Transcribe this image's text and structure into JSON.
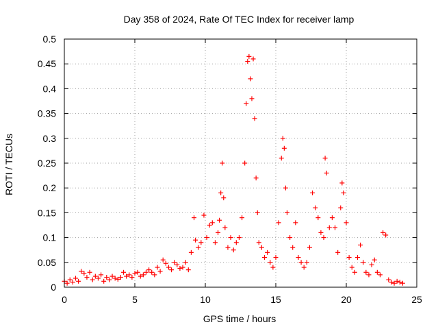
{
  "chart_data": {
    "type": "scatter",
    "title": "Day 358 of 2024, Rate Of TEC Index for receiver lamp",
    "xlabel": "GPS time / hours",
    "ylabel": "ROTI / TECUs",
    "xlim": [
      0,
      25
    ],
    "ylim": [
      0,
      0.5
    ],
    "x_ticks": [
      0,
      5,
      10,
      15,
      20,
      25
    ],
    "x_tick_labels": [
      "0",
      "5",
      "10",
      "15",
      "20",
      "25"
    ],
    "y_ticks": [
      0,
      0.05,
      0.1,
      0.15,
      0.2,
      0.25,
      0.3,
      0.35,
      0.4,
      0.45,
      0.5
    ],
    "y_tick_labels": [
      "0",
      "0.05",
      "0.1",
      "0.15",
      "0.2",
      "0.25",
      "0.3",
      "0.35",
      "0.4",
      "0.45",
      "0.5"
    ],
    "grid": true,
    "marker": "+",
    "color": "#ff0000",
    "series": [
      {
        "points": [
          [
            0.0,
            0.012
          ],
          [
            0.2,
            0.008
          ],
          [
            0.4,
            0.015
          ],
          [
            0.6,
            0.01
          ],
          [
            0.8,
            0.018
          ],
          [
            1.0,
            0.012
          ],
          [
            1.2,
            0.032
          ],
          [
            1.4,
            0.028
          ],
          [
            1.6,
            0.02
          ],
          [
            1.8,
            0.03
          ],
          [
            2.0,
            0.015
          ],
          [
            2.2,
            0.022
          ],
          [
            2.4,
            0.018
          ],
          [
            2.6,
            0.025
          ],
          [
            2.8,
            0.012
          ],
          [
            3.0,
            0.02
          ],
          [
            3.2,
            0.015
          ],
          [
            3.4,
            0.022
          ],
          [
            3.6,
            0.018
          ],
          [
            3.8,
            0.016
          ],
          [
            4.0,
            0.02
          ],
          [
            4.2,
            0.03
          ],
          [
            4.4,
            0.022
          ],
          [
            4.6,
            0.025
          ],
          [
            4.8,
            0.02
          ],
          [
            5.0,
            0.028
          ],
          [
            5.2,
            0.03
          ],
          [
            5.4,
            0.022
          ],
          [
            5.6,
            0.025
          ],
          [
            5.8,
            0.03
          ],
          [
            6.0,
            0.035
          ],
          [
            6.2,
            0.03
          ],
          [
            6.4,
            0.025
          ],
          [
            6.6,
            0.04
          ],
          [
            6.8,
            0.032
          ],
          [
            7.0,
            0.055
          ],
          [
            7.2,
            0.048
          ],
          [
            7.4,
            0.04
          ],
          [
            7.6,
            0.035
          ],
          [
            7.8,
            0.05
          ],
          [
            8.0,
            0.045
          ],
          [
            8.2,
            0.038
          ],
          [
            8.4,
            0.04
          ],
          [
            8.6,
            0.05
          ],
          [
            8.8,
            0.035
          ],
          [
            9.0,
            0.07
          ],
          [
            9.2,
            0.14
          ],
          [
            9.3,
            0.095
          ],
          [
            9.5,
            0.08
          ],
          [
            9.7,
            0.09
          ],
          [
            9.9,
            0.145
          ],
          [
            10.1,
            0.1
          ],
          [
            10.3,
            0.125
          ],
          [
            10.5,
            0.13
          ],
          [
            10.7,
            0.09
          ],
          [
            10.9,
            0.11
          ],
          [
            11.0,
            0.135
          ],
          [
            11.1,
            0.19
          ],
          [
            11.2,
            0.25
          ],
          [
            11.3,
            0.18
          ],
          [
            11.4,
            0.12
          ],
          [
            11.6,
            0.08
          ],
          [
            11.8,
            0.1
          ],
          [
            12.0,
            0.075
          ],
          [
            12.2,
            0.09
          ],
          [
            12.4,
            0.1
          ],
          [
            12.6,
            0.14
          ],
          [
            12.8,
            0.25
          ],
          [
            12.9,
            0.37
          ],
          [
            13.0,
            0.455
          ],
          [
            13.1,
            0.465
          ],
          [
            13.2,
            0.42
          ],
          [
            13.3,
            0.38
          ],
          [
            13.4,
            0.46
          ],
          [
            13.5,
            0.34
          ],
          [
            13.6,
            0.22
          ],
          [
            13.7,
            0.15
          ],
          [
            13.8,
            0.09
          ],
          [
            14.0,
            0.08
          ],
          [
            14.2,
            0.06
          ],
          [
            14.4,
            0.07
          ],
          [
            14.6,
            0.05
          ],
          [
            14.8,
            0.04
          ],
          [
            15.0,
            0.06
          ],
          [
            15.2,
            0.13
          ],
          [
            15.4,
            0.26
          ],
          [
            15.5,
            0.3
          ],
          [
            15.6,
            0.28
          ],
          [
            15.7,
            0.2
          ],
          [
            15.8,
            0.15
          ],
          [
            16.0,
            0.1
          ],
          [
            16.2,
            0.08
          ],
          [
            16.4,
            0.13
          ],
          [
            16.6,
            0.06
          ],
          [
            16.8,
            0.05
          ],
          [
            17.0,
            0.04
          ],
          [
            17.2,
            0.05
          ],
          [
            17.4,
            0.08
          ],
          [
            17.6,
            0.19
          ],
          [
            17.8,
            0.16
          ],
          [
            18.0,
            0.14
          ],
          [
            18.2,
            0.11
          ],
          [
            18.4,
            0.1
          ],
          [
            18.5,
            0.26
          ],
          [
            18.6,
            0.23
          ],
          [
            18.8,
            0.12
          ],
          [
            19.0,
            0.14
          ],
          [
            19.2,
            0.12
          ],
          [
            19.4,
            0.07
          ],
          [
            19.6,
            0.16
          ],
          [
            19.7,
            0.21
          ],
          [
            19.8,
            0.19
          ],
          [
            20.0,
            0.13
          ],
          [
            20.2,
            0.06
          ],
          [
            20.4,
            0.04
          ],
          [
            20.6,
            0.03
          ],
          [
            20.8,
            0.06
          ],
          [
            21.0,
            0.085
          ],
          [
            21.2,
            0.05
          ],
          [
            21.4,
            0.03
          ],
          [
            21.6,
            0.025
          ],
          [
            21.8,
            0.045
          ],
          [
            22.0,
            0.055
          ],
          [
            22.2,
            0.03
          ],
          [
            22.4,
            0.025
          ],
          [
            22.6,
            0.11
          ],
          [
            22.8,
            0.105
          ],
          [
            23.0,
            0.015
          ],
          [
            23.2,
            0.01
          ],
          [
            23.4,
            0.008
          ],
          [
            23.6,
            0.012
          ],
          [
            23.8,
            0.01
          ],
          [
            24.0,
            0.008
          ]
        ]
      }
    ]
  }
}
